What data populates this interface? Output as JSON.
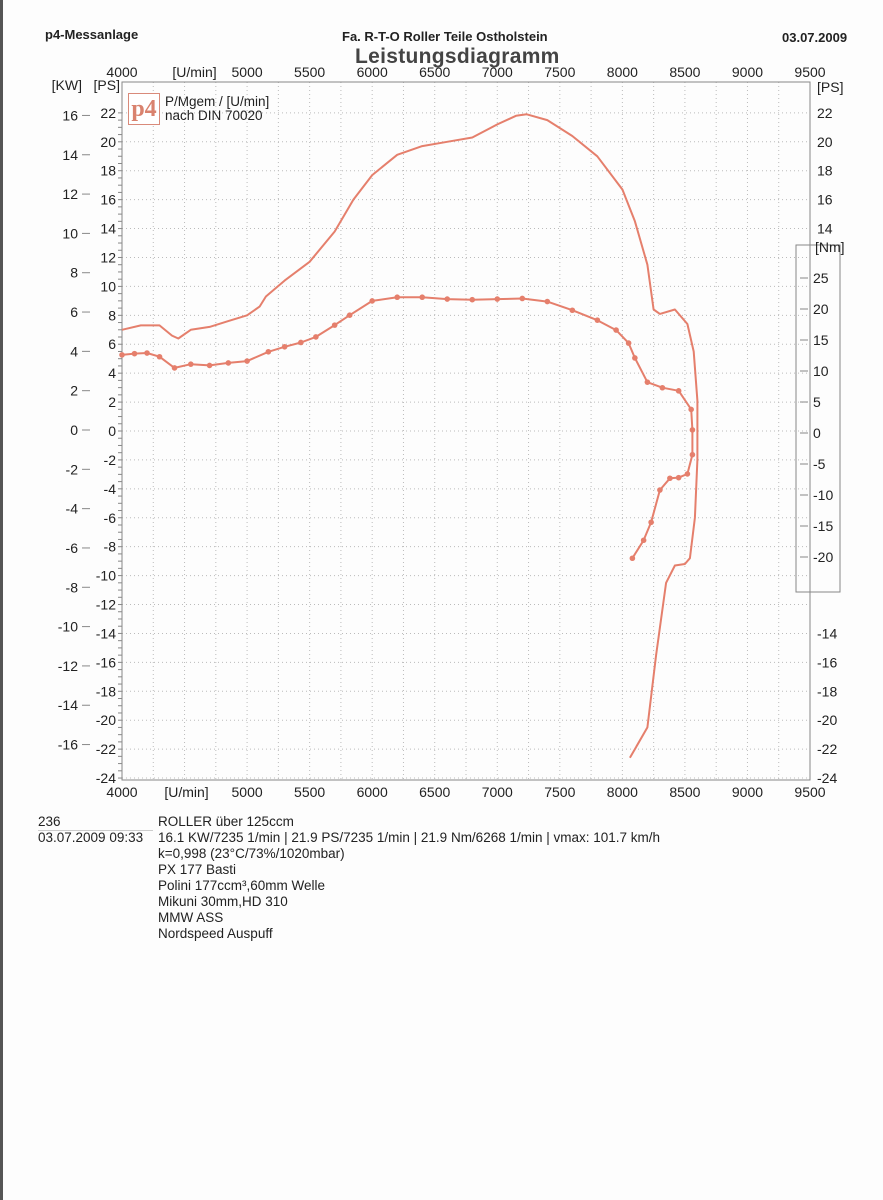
{
  "header": {
    "left": "p4-Messanlage",
    "center": "Fa. R-T-O  Roller Teile Ostholstein",
    "right": "03.07.2009",
    "title": "Leistungsdiagramm"
  },
  "logo": {
    "text": "p4",
    "caption_line1": "P/Mgem / [U/min]",
    "caption_line2": "nach DIN 70020"
  },
  "notes": {
    "id": "236",
    "datetime": "03.07.2009  09:33",
    "lines": [
      "ROLLER über 125ccm",
      "16.1 KW/7235 1/min  |  21.9 PS/7235 1/min  |  21.9 Nm/6268 1/min | vmax: 101.7 km/h",
      "k=0,998 (23°C/73%/1020mbar)",
      "PX 177 Basti",
      "Polini 177ccm³,60mm Welle",
      "Mikuni 30mm,HD 310",
      "MMW ASS",
      "Nordspeed Auspuff"
    ]
  },
  "colors": {
    "curve": "#e57f6c",
    "grid": "#bbbbbb",
    "axis": "#888888"
  },
  "chart_data": {
    "type": "line",
    "title": "Leistungsdiagramm",
    "x_unit_label": "[U/min]",
    "x_ticks": [
      4000,
      5000,
      5500,
      6000,
      6500,
      7000,
      7500,
      8000,
      8500,
      9000,
      9500
    ],
    "xlim": [
      4000,
      9500
    ],
    "left_axis_kw": {
      "label": "[KW]",
      "ticks": [
        16,
        14,
        12,
        10,
        8,
        6,
        4,
        2,
        0,
        -2,
        -4,
        -6,
        -8,
        -10,
        -12,
        -14,
        -16
      ],
      "range": [
        -16,
        16
      ]
    },
    "left_axis_ps": {
      "label": "[PS]",
      "ticks": [
        22,
        20,
        18,
        16,
        14,
        12,
        10,
        8,
        6,
        4,
        2,
        0,
        -2,
        -4,
        -6,
        -8,
        -10,
        -12,
        -14,
        -16,
        -18,
        -20,
        -22,
        -24
      ],
      "range": [
        -24,
        22
      ]
    },
    "right_axis_ps": {
      "label": "[PS]",
      "ticks": [
        22,
        20,
        18,
        16,
        14,
        -14,
        -16,
        -18,
        -20,
        -22,
        -24
      ]
    },
    "right_axis_nm": {
      "label": "[Nm]",
      "ticks": [
        25,
        20,
        15,
        10,
        5,
        0,
        -5,
        -10,
        -15,
        -20
      ]
    },
    "grid": true,
    "series": [
      {
        "unit": "PS",
        "markers": false,
        "points": [
          [
            4000,
            7.0
          ],
          [
            4150,
            7.3
          ],
          [
            4300,
            7.3
          ],
          [
            4400,
            6.6
          ],
          [
            4450,
            6.4
          ],
          [
            4550,
            7.0
          ],
          [
            4700,
            7.2
          ],
          [
            4850,
            7.6
          ],
          [
            5000,
            8.0
          ],
          [
            5100,
            8.6
          ],
          [
            5150,
            9.3
          ],
          [
            5300,
            10.4
          ],
          [
            5500,
            11.7
          ],
          [
            5700,
            13.8
          ],
          [
            5850,
            16.0
          ],
          [
            6000,
            17.7
          ],
          [
            6200,
            19.1
          ],
          [
            6400,
            19.7
          ],
          [
            6600,
            20.0
          ],
          [
            6800,
            20.3
          ],
          [
            7000,
            21.2
          ],
          [
            7150,
            21.8
          ],
          [
            7235,
            21.9
          ],
          [
            7400,
            21.5
          ],
          [
            7600,
            20.4
          ],
          [
            7800,
            19.0
          ],
          [
            8000,
            16.7
          ],
          [
            8100,
            14.5
          ],
          [
            8200,
            11.5
          ],
          [
            8250,
            8.4
          ],
          [
            8300,
            8.1
          ],
          [
            8420,
            8.4
          ],
          [
            8520,
            7.4
          ],
          [
            8570,
            5.5
          ],
          [
            8600,
            2.1
          ],
          [
            8600,
            -2
          ],
          [
            8580,
            -6
          ],
          [
            8540,
            -8.8
          ],
          [
            8500,
            -9.2
          ],
          [
            8420,
            -9.3
          ],
          [
            8350,
            -10.5
          ],
          [
            8270,
            -15.5
          ],
          [
            8200,
            -20.5
          ],
          [
            8060,
            -22.6
          ]
        ]
      },
      {
        "unit": "Nm",
        "markers": true,
        "points": [
          [
            4000,
            12.6
          ],
          [
            4100,
            12.8
          ],
          [
            4200,
            12.9
          ],
          [
            4300,
            12.3
          ],
          [
            4420,
            10.5
          ],
          [
            4550,
            11.1
          ],
          [
            4700,
            10.9
          ],
          [
            4850,
            11.3
          ],
          [
            5000,
            11.6
          ],
          [
            5170,
            13.1
          ],
          [
            5300,
            13.9
          ],
          [
            5430,
            14.6
          ],
          [
            5550,
            15.5
          ],
          [
            5700,
            17.4
          ],
          [
            5820,
            19.0
          ],
          [
            6000,
            21.3
          ],
          [
            6200,
            21.9
          ],
          [
            6400,
            21.9
          ],
          [
            6600,
            21.6
          ],
          [
            6800,
            21.5
          ],
          [
            7000,
            21.6
          ],
          [
            7200,
            21.7
          ],
          [
            7400,
            21.2
          ],
          [
            7600,
            19.8
          ],
          [
            7800,
            18.2
          ],
          [
            7950,
            16.6
          ],
          [
            8050,
            14.5
          ],
          [
            8100,
            12.1
          ],
          [
            8200,
            8.2
          ],
          [
            8320,
            7.3
          ],
          [
            8450,
            6.8
          ],
          [
            8550,
            3.8
          ],
          [
            8560,
            0.5
          ],
          [
            8560,
            -3.5
          ],
          [
            8520,
            -6.6
          ],
          [
            8450,
            -7.2
          ],
          [
            8380,
            -7.3
          ],
          [
            8300,
            -9.2
          ],
          [
            8230,
            -14.4
          ],
          [
            8170,
            -17.3
          ],
          [
            8080,
            -20.2
          ]
        ]
      }
    ]
  }
}
